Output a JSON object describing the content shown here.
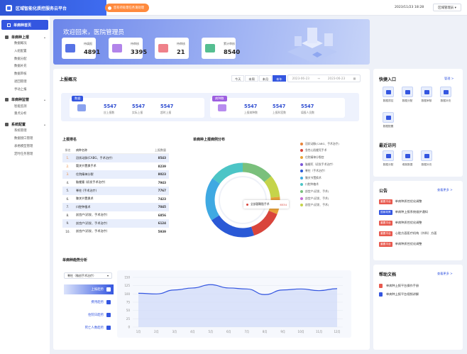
{
  "header": {
    "app_title": "区域智能化质控服务云平台",
    "notice": "您有待处理任务请处理",
    "datetime": "2023/11/23 18:28",
    "user": "区域管理员 ▾"
  },
  "sidebar": {
    "home": "单病种首页",
    "groups": [
      {
        "label": "单病种上报",
        "items": [
          "数据概况",
          "入组配置",
          "数据分配",
          "数据补充",
          "数据审核",
          "退回管理",
          "手动上报"
        ]
      },
      {
        "label": "单病种监管",
        "items": [
          "智能监测",
          "重点分析"
        ]
      },
      {
        "label": "系统配置",
        "items": [
          "系统管理",
          "数据接口管理",
          "表格模型管理",
          "定时任务管理"
        ]
      }
    ]
  },
  "welcome": {
    "title": "欢迎回来，医院管理员",
    "cards": [
      {
        "label": "待填报",
        "value": "4891",
        "color": "#3a5be0"
      },
      {
        "label": "待审核",
        "value": "3395",
        "color": "#a46fe6"
      },
      {
        "label": "待审核",
        "value": "21",
        "color": "#ec6b75"
      },
      {
        "label": "累计审核",
        "value": "8540",
        "color": "#37b37e"
      }
    ]
  },
  "overview": {
    "title": "上报概况",
    "filters": [
      "今天",
      "本周",
      "本月",
      "本年"
    ],
    "active_filter": "本年",
    "date_from": "2023-06-23",
    "date_to": "2023-06-23",
    "left_tag": "数据",
    "right_tag": "病种数",
    "left_stats": [
      {
        "value": "5547",
        "label": "应上报数"
      },
      {
        "value": "5547",
        "label": "实际上报"
      },
      {
        "value": "5547",
        "label": "超时上报"
      }
    ],
    "right_stats": [
      {
        "value": "5547",
        "label": "上报病种数"
      },
      {
        "value": "5547",
        "label": "上报科室数"
      },
      {
        "value": "5547",
        "label": "填报人员数"
      }
    ]
  },
  "ranking": {
    "title": "上报排名",
    "headers": [
      "排名",
      "病种名称",
      "上报数量"
    ],
    "rows": [
      {
        "rank": "1.",
        "name": "冠状动脉(CABG、手术治疗)",
        "value": "8543"
      },
      {
        "rank": "2.",
        "name": "髋关节置换手术",
        "value": "8239"
      },
      {
        "rank": "3.",
        "name": "住院精神分裂",
        "value": "8023"
      },
      {
        "rank": "4.",
        "name": "脑梗塞 (初发手术治疗)",
        "value": "7943"
      },
      {
        "rank": "5.",
        "name": "脊柱 (手术治疗)",
        "value": "7767"
      },
      {
        "rank": "6.",
        "name": "膝关节置换术",
        "value": "7423"
      },
      {
        "rank": "7.",
        "name": "口腔种植术",
        "value": "7045"
      },
      {
        "rank": "8.",
        "name": "剖宫产(初发、手术治疗)",
        "value": "6856"
      },
      {
        "rank": "9.",
        "name": "剖宫产(初发、手术治疗)",
        "value": "6124"
      },
      {
        "rank": "10.",
        "name": "剖宫产(初发、手术治疗)",
        "value": "5939"
      }
    ]
  },
  "distribution": {
    "title": "单病种上报病例分布",
    "tooltip_label": "全部髓鞘脂手术",
    "tooltip_value": "6534",
    "legend": [
      "冠状动脉(CABG、手术治疗)",
      "急性心肌梗死手术",
      "住院精神分裂症",
      "脑梗死（初发手术治疗）",
      "脊柱（手术治疗）",
      "膝关节置换术",
      "口腔种植术",
      "剖宫产(初发、手术)",
      "剖宫产(初发、手术)",
      "剖宫产(初发、手术)"
    ]
  },
  "trend": {
    "title": "单病种趋势分析",
    "select": "脊柱（微创手术治疗）",
    "tabs": [
      "上报趋势",
      "费用趋势",
      "住院日趋势",
      "死亡人数趋势"
    ]
  },
  "chart_data": {
    "type": "area",
    "x": [
      "1月",
      "2月",
      "3月",
      "4月",
      "5月",
      "6月",
      "7月",
      "8月",
      "9月",
      "10月",
      "11月",
      "12月"
    ],
    "series": [
      {
        "values": [
          102,
          100,
          112,
          118,
          128,
          118,
          115,
          98,
          112,
          115,
          110,
          116
        ]
      }
    ],
    "ylim": [
      0,
      150
    ],
    "yticks": [
      "0",
      "25",
      "50",
      "75",
      "100",
      "125",
      "150"
    ],
    "grid": true
  },
  "quick": {
    "title": "快捷入口",
    "more": "管理 >",
    "items": [
      "数据质控",
      "数据分配",
      "数据审核",
      "数据补充",
      "数据配置"
    ]
  },
  "recent": {
    "title": "最近访问",
    "items": [
      "数据分配",
      "填报数据",
      "数据补充"
    ]
  },
  "announce": {
    "title": "公告",
    "more": "查看更多 >",
    "rows": [
      {
        "badge": "重要平台",
        "color": "#e85a4f",
        "text": "单病种质控优化调整"
      },
      {
        "badge": "国家政策",
        "color": "#3456e0",
        "text": "单病种上报系统维护通知"
      },
      {
        "badge": "重要平台",
        "color": "#e85a4f",
        "text": "单病种质控优化调整"
      },
      {
        "badge": "重要平台",
        "color": "#e85a4f",
        "text": "心脏方面医疗机构（外科）方面"
      },
      {
        "badge": "重要平台",
        "color": "#e85a4f",
        "text": "单病种质控优化调整"
      }
    ]
  },
  "help": {
    "title": "帮助文档",
    "more": "查看更多 >",
    "items": [
      {
        "text": "单病种上报平台操作手册",
        "color": "#e85a4f"
      },
      {
        "text": "单病种上报平台视频讲解",
        "color": "#3456e0"
      }
    ]
  }
}
